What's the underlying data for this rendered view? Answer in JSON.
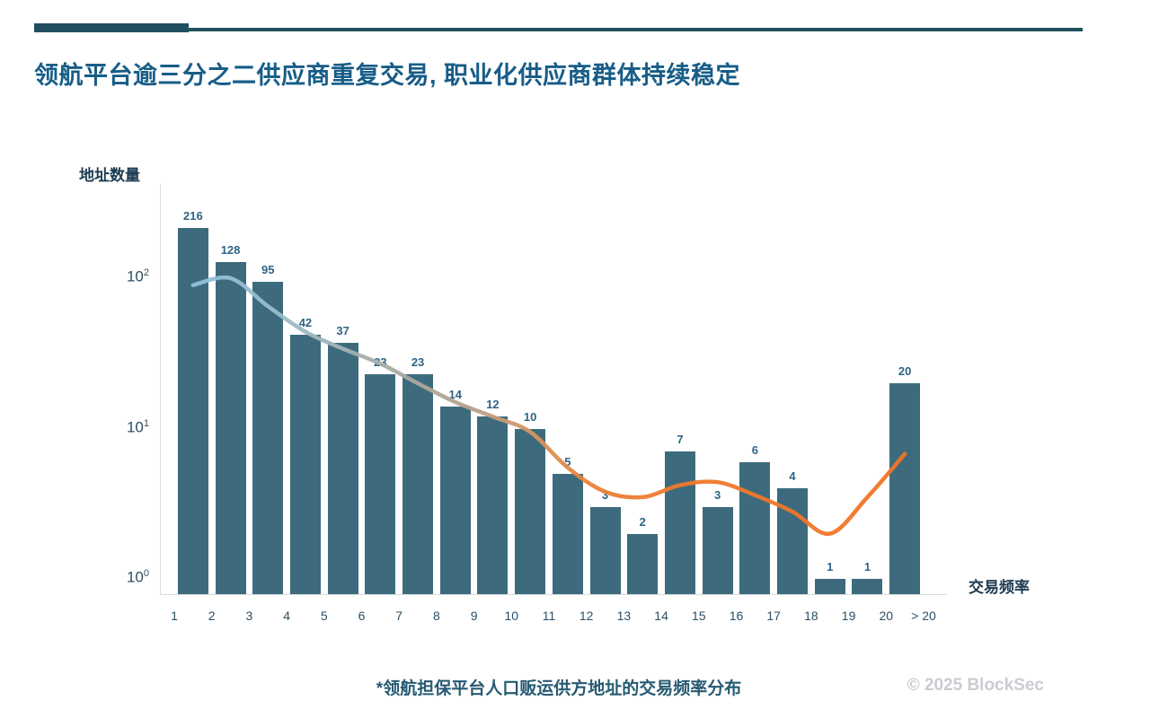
{
  "page": {
    "title": "领航平台逾三分之二供应商重复交易, 职业化供应商群体持续稳定",
    "caption": "*领航担保平台人口贩运供方地址的交易频率分布",
    "copyright": "© 2025 BlockSec"
  },
  "chart_data": {
    "type": "bar",
    "scale": "log-y",
    "title": "领航平台逾三分之二供应商重复交易, 职业化供应商群体持续稳定",
    "subtitle_caption": "*领航担保平台人口贩运供方地址的交易频率分布",
    "xlabel": "交易频率",
    "ylabel": "地址数量",
    "x_tick_labels": [
      "1",
      "2",
      "3",
      "4",
      "5",
      "6",
      "7",
      "8",
      "9",
      "10",
      "11",
      "12",
      "13",
      "14",
      "15",
      "16",
      "17",
      "18",
      "19",
      "20",
      "> 20"
    ],
    "bin_style": "bars sit between consecutive tick labels (bin edges)",
    "values": [
      216,
      128,
      95,
      42,
      37,
      23,
      23,
      14,
      12,
      10,
      5,
      3,
      2,
      7,
      3,
      6,
      4,
      1,
      1,
      20
    ],
    "y_ticks": [
      {
        "base": "10",
        "exp": "2",
        "value": 100
      },
      {
        "base": "10",
        "exp": "1",
        "value": 10
      },
      {
        "base": "10",
        "exp": "0",
        "value": 1
      }
    ],
    "ylim": [
      0.8,
      450
    ],
    "grid": false,
    "legend": "none",
    "trend": {
      "description": "smooth trend curve over bar tops, blue-to-orange gradient",
      "values": [
        90,
        100,
        65,
        44,
        34,
        27,
        20,
        15,
        12,
        9.5,
        5.5,
        3.8,
        3.5,
        4.2,
        4.4,
        3.6,
        2.8,
        2.0,
        3.5,
        6.8
      ],
      "gradient_stops": [
        [
          "0",
          "#8ec1dc"
        ],
        [
          "0.12",
          "#9bbccb"
        ],
        [
          "0.25",
          "#a5aeac"
        ],
        [
          "0.38",
          "#b3a390"
        ],
        [
          "0.48",
          "#d6945f"
        ],
        [
          "0.56",
          "#ea8238"
        ],
        [
          "0.68",
          "#ef7a2c"
        ],
        [
          "1",
          "#ef7428"
        ]
      ]
    },
    "colors": {
      "bar": "#3d6b7d",
      "accent_rule": "#20505f",
      "title": "#175d87",
      "value_label": "#2e6384",
      "axis_text": "#1d3b50",
      "tick_text": "#2c4f66",
      "caption": "#275a72",
      "copyright": "#c9ccd1",
      "axis_line": "#d5dbdf"
    }
  }
}
